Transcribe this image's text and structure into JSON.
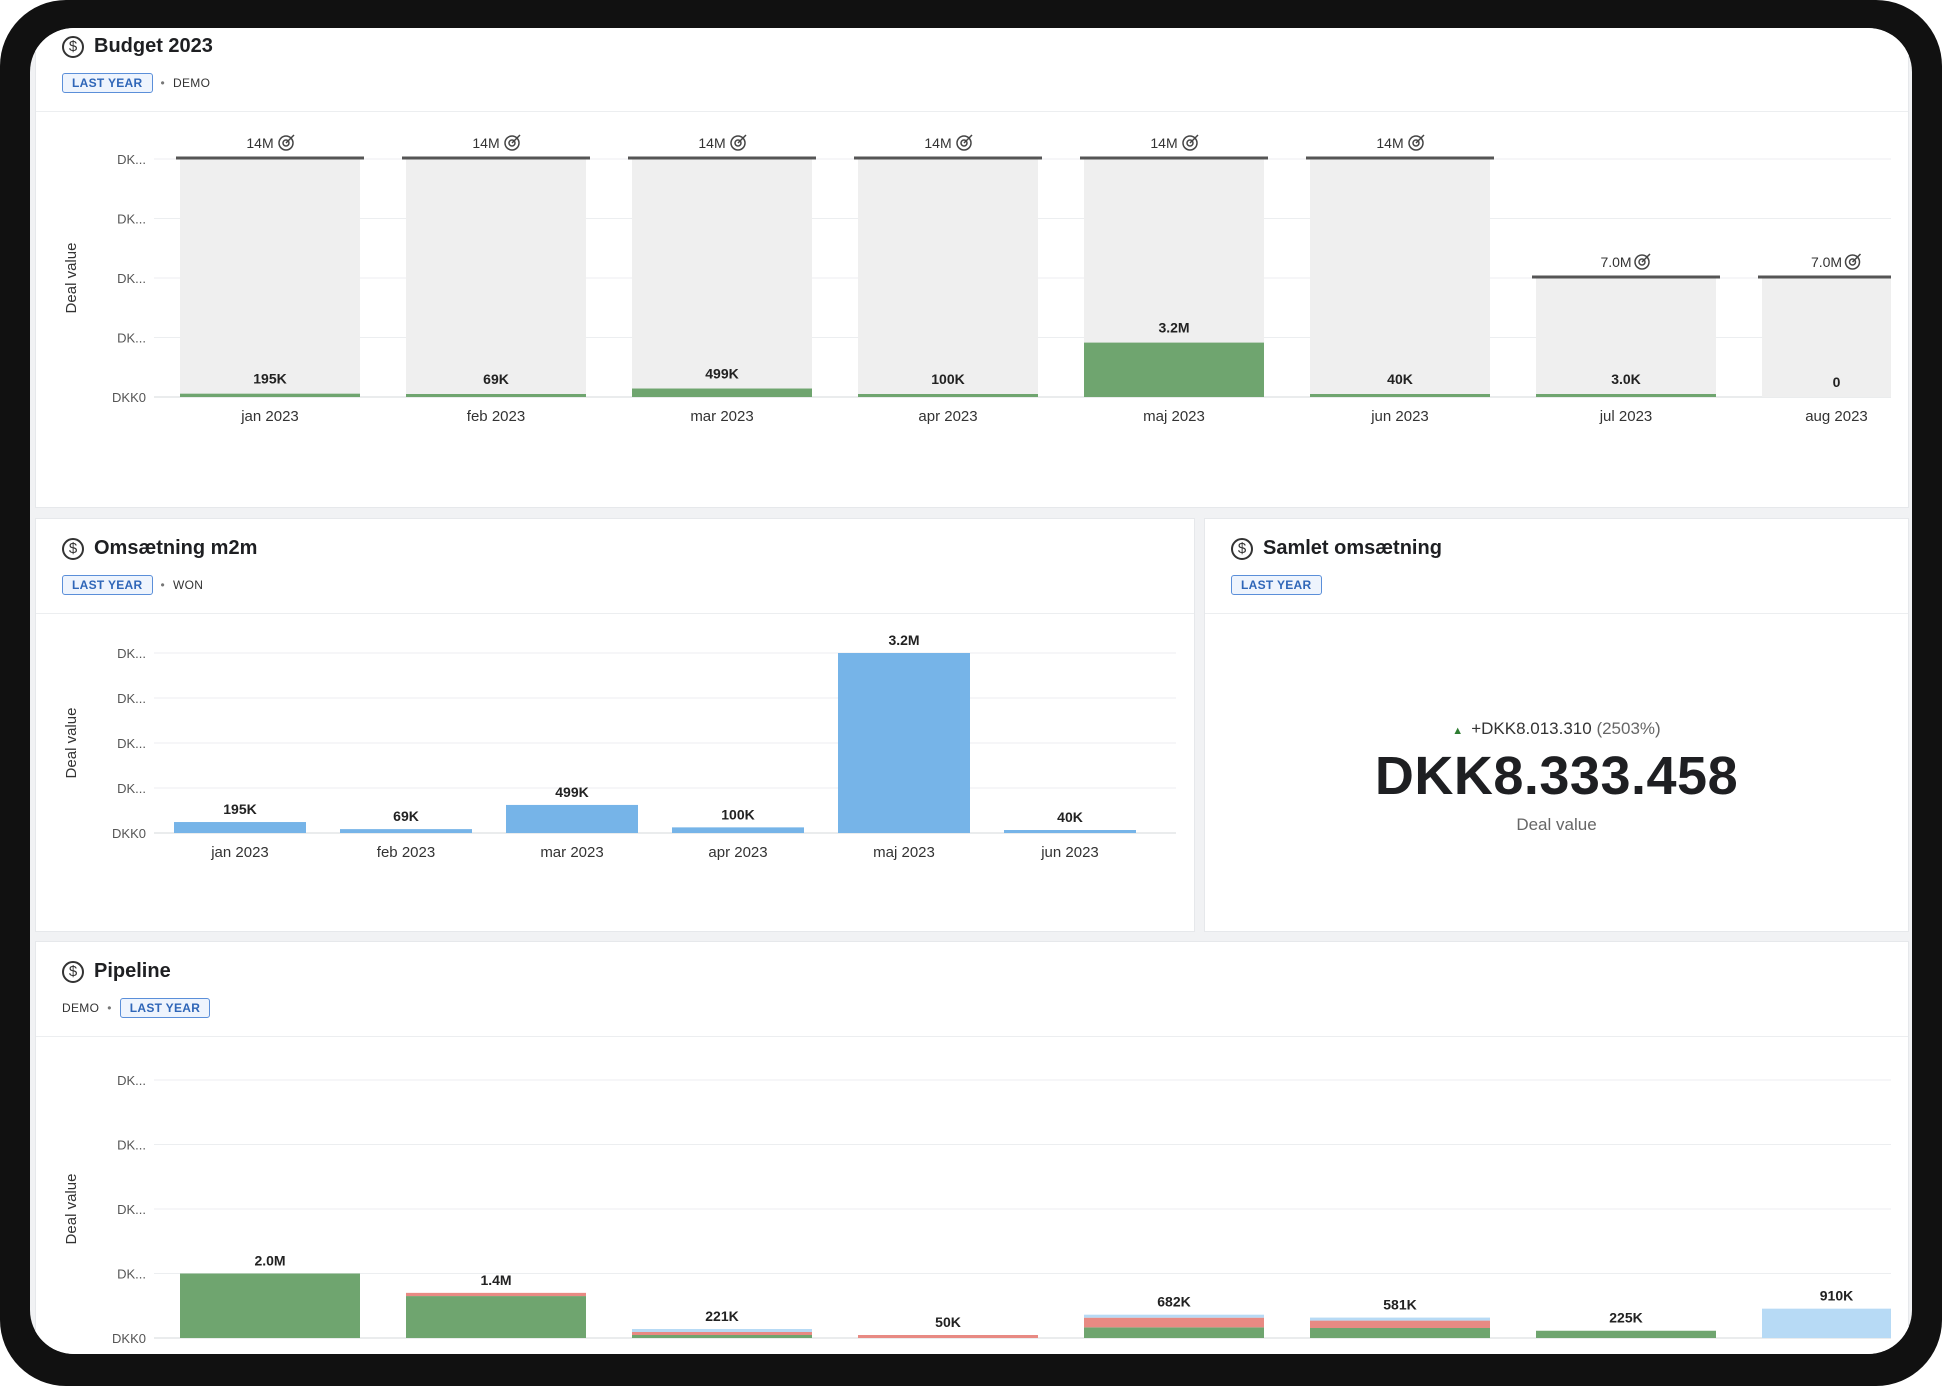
{
  "budget": {
    "title": "Budget 2023",
    "tag_primary": "LAST YEAR",
    "tag_secondary": "DEMO",
    "ylabel": "Deal value"
  },
  "m2m": {
    "title": "Omsætning m2m",
    "tag_primary": "LAST YEAR",
    "tag_secondary": "WON",
    "ylabel": "Deal value"
  },
  "samlet": {
    "title": "Samlet omsætning",
    "tag_primary": "LAST YEAR",
    "delta": "+DKK8.013.310",
    "delta_pct": "(2503%)",
    "value": "DKK8.333.458",
    "label": "Deal value"
  },
  "pipeline": {
    "title": "Pipeline",
    "tag_primary": "LAST YEAR",
    "tag_secondary": "DEMO",
    "ylabel": "Deal value"
  },
  "colors": {
    "green": "#6fa56f",
    "blue": "#76b4e8",
    "light_blue": "#b7daf5",
    "red": "#e88a83",
    "target_bg": "#efefef",
    "tag_blue": "#2f66b8"
  },
  "chart_data": [
    {
      "id": "budget",
      "type": "bar",
      "categories": [
        "jan 2023",
        "feb 2023",
        "mar 2023",
        "apr 2023",
        "maj 2023",
        "jun 2023",
        "jul 2023",
        "aug 2023"
      ],
      "values": [
        195000,
        69000,
        499000,
        100000,
        3200000,
        40000,
        3000,
        0
      ],
      "value_labels": [
        "195K",
        "69K",
        "499K",
        "100K",
        "3.2M",
        "40K",
        "3.0K",
        "0"
      ],
      "targets": [
        14000000,
        14000000,
        14000000,
        14000000,
        14000000,
        14000000,
        7000000,
        7000000
      ],
      "target_labels": [
        "14M",
        "14M",
        "14M",
        "14M",
        "14M",
        "14M",
        "7.0M",
        "7.0M"
      ],
      "ytick_labels": [
        "DKK0",
        "DK...",
        "DK...",
        "DK...",
        "DK..."
      ],
      "ylabel": "Deal value",
      "ylim": [
        0,
        14000000
      ],
      "grid": true
    },
    {
      "id": "m2m",
      "type": "bar",
      "categories": [
        "jan 2023",
        "feb 2023",
        "mar 2023",
        "apr 2023",
        "maj 2023",
        "jun 2023"
      ],
      "values": [
        195000,
        69000,
        499000,
        100000,
        3200000,
        40000
      ],
      "value_labels": [
        "195K",
        "69K",
        "499K",
        "100K",
        "3.2M",
        "40K"
      ],
      "ytick_labels": [
        "DKK0",
        "DK...",
        "DK...",
        "DK...",
        "DK..."
      ],
      "ylabel": "Deal value",
      "ylim": [
        0,
        3200000
      ],
      "grid": true
    },
    {
      "id": "pipeline",
      "type": "bar",
      "stacked": true,
      "totals": [
        2000000,
        1400000,
        221000,
        50000,
        682000,
        581000,
        225000,
        910000
      ],
      "total_labels": [
        "2.0M",
        "1.4M",
        "221K",
        "50K",
        "682K",
        "581K",
        "225K",
        "910K"
      ],
      "series": [
        {
          "color": "#6fa56f",
          "values": [
            2000000,
            1300000,
            90000,
            0,
            330000,
            310000,
            225000,
            0
          ]
        },
        {
          "color": "#e88a83",
          "values": [
            0,
            100000,
            40000,
            50000,
            300000,
            230000,
            0,
            0
          ]
        },
        {
          "color": "#b7daf5",
          "values": [
            0,
            0,
            91000,
            0,
            52000,
            41000,
            0,
            910000
          ]
        }
      ],
      "ytick_labels": [
        "DKK0",
        "DK...",
        "DK...",
        "DK...",
        "DK..."
      ],
      "ylabel": "Deal value",
      "ylim": [
        0,
        8000000
      ],
      "grid": true
    }
  ]
}
